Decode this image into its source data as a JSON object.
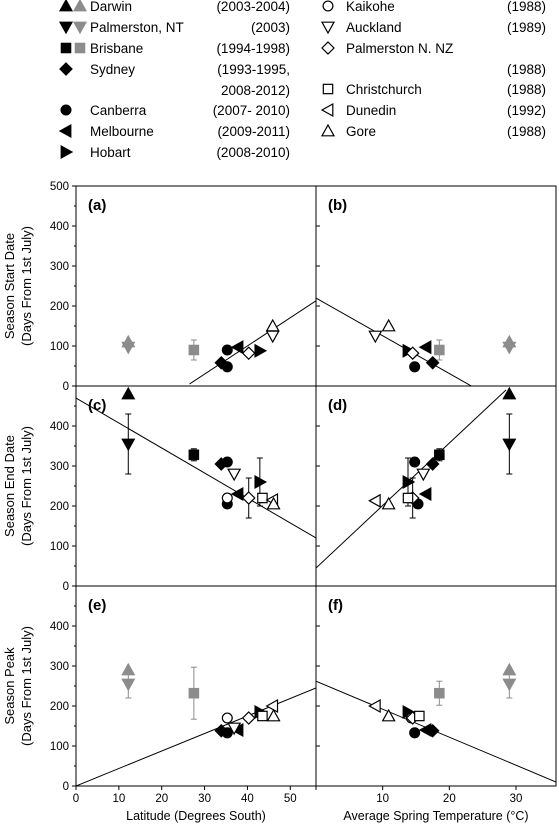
{
  "legend": {
    "left": [
      {
        "name": "Darwin",
        "years": "(2003-2004)",
        "markers": [
          "tri-up-black",
          "tri-up-grey"
        ]
      },
      {
        "name": "Palmerston, NT",
        "years": "(2003)",
        "markers": [
          "tri-down-black",
          "tri-down-grey"
        ]
      },
      {
        "name": "Brisbane",
        "years": "(1994-1998)",
        "markers": [
          "square-black",
          "square-grey"
        ]
      },
      {
        "name": "Sydney",
        "years": "(1993-1995,",
        "years2": "2008-2012)",
        "markers": [
          "diamond-black"
        ]
      },
      {
        "name": "Canberra",
        "years": "(2007- 2010)",
        "markers": [
          "circle-black"
        ]
      },
      {
        "name": "Melbourne",
        "years": "(2009-2011)",
        "markers": [
          "tri-left-black"
        ]
      },
      {
        "name": "Hobart",
        "years": "(2008-2010)",
        "markers": [
          "tri-right-black"
        ]
      }
    ],
    "right": [
      {
        "name": "Kaikohe",
        "years": "(1988)",
        "markers": [
          "circle-open"
        ]
      },
      {
        "name": "Auckland",
        "years": "(1989)",
        "markers": [
          "tri-down-open"
        ]
      },
      {
        "name": "Palmerston N. NZ",
        "years": "(1988)",
        "markers": [
          "diamond-open"
        ]
      },
      {
        "name": "Christchurch",
        "years": "(1988)",
        "markers": [
          "square-open"
        ]
      },
      {
        "name": "Dunedin",
        "years": "(1992)",
        "markers": [
          "tri-left-open"
        ]
      },
      {
        "name": "Gore",
        "years": "(1988)",
        "markers": [
          "tri-up-open"
        ]
      }
    ]
  },
  "axes": {
    "x_left_label": "Latitude (Degrees South)",
    "x_right_label": "Average Spring Temperature (°C)",
    "x_left_ticks": [
      "0",
      "10",
      "20",
      "30",
      "40",
      "50"
    ],
    "x_right_ticks": [
      "0",
      "10",
      "20",
      "30"
    ],
    "y_ticks": [
      "0",
      "100",
      "200",
      "300",
      "400",
      "500"
    ],
    "y_ticks_lower": [
      "0",
      "100",
      "200",
      "300",
      "400"
    ],
    "row_labels": [
      {
        "line1": "Season Start Date",
        "line2": "(Days From 1st July)"
      },
      {
        "line1": "Season End Date",
        "line2": "(Days From 1st July)"
      },
      {
        "line1": "Season Peak",
        "line2": "(Days From 1st July)"
      }
    ]
  },
  "chart_data": {
    "type": "scatter",
    "xlim_left": [
      0,
      56
    ],
    "xlim_right": [
      0,
      36
    ],
    "ylim": [
      0,
      500
    ],
    "panels": [
      {
        "id": "a",
        "label": "(a)",
        "row": 0,
        "col": 0,
        "fit": [
          [
            26.5,
            5
          ],
          [
            56,
            213
          ]
        ],
        "points": [
          {
            "m": "tri-up-grey",
            "x": 12.2,
            "y": 110
          },
          {
            "m": "tri-down-grey",
            "x": 12.2,
            "y": 97
          },
          {
            "m": "square-grey",
            "x": 27.5,
            "y": 90,
            "err": 25
          },
          {
            "m": "diamond-black",
            "x": 33.9,
            "y": 58
          },
          {
            "m": "circle-black",
            "x": 35.3,
            "y": 90
          },
          {
            "m": "circle-black",
            "x": 35.3,
            "y": 48
          },
          {
            "m": "tri-left-black",
            "x": 37.8,
            "y": 97
          },
          {
            "m": "tri-right-black",
            "x": 42.9,
            "y": 88
          },
          {
            "m": "diamond-open",
            "x": 40.3,
            "y": 82
          },
          {
            "m": "tri-up-open",
            "x": 45.9,
            "y": 150
          },
          {
            "m": "tri-down-open",
            "x": 45.9,
            "y": 125
          }
        ]
      },
      {
        "id": "b",
        "label": "(b)",
        "row": 0,
        "col": 1,
        "fit": [
          [
            0,
            220
          ],
          [
            23.3,
            0
          ]
        ],
        "points": [
          {
            "m": "tri-up-grey",
            "x": 29,
            "y": 110
          },
          {
            "m": "tri-down-grey",
            "x": 29,
            "y": 97
          },
          {
            "m": "square-grey",
            "x": 18.5,
            "y": 90,
            "err": 25
          },
          {
            "m": "diamond-black",
            "x": 17.5,
            "y": 58
          },
          {
            "m": "circle-black",
            "x": 14.8,
            "y": 48
          },
          {
            "m": "tri-left-black",
            "x": 16.5,
            "y": 97
          },
          {
            "m": "tri-right-black",
            "x": 13.8,
            "y": 88
          },
          {
            "m": "diamond-open",
            "x": 14.5,
            "y": 82
          },
          {
            "m": "tri-up-open",
            "x": 10.9,
            "y": 150
          },
          {
            "m": "tri-down-open",
            "x": 8.9,
            "y": 125
          }
        ]
      },
      {
        "id": "c",
        "label": "(c)",
        "row": 1,
        "col": 0,
        "fit": [
          [
            0,
            470
          ],
          [
            56,
            120
          ]
        ],
        "points": [
          {
            "m": "tri-up-black",
            "x": 12.2,
            "y": 480
          },
          {
            "m": "tri-down-black",
            "x": 12.2,
            "y": 355,
            "err": 75
          },
          {
            "m": "square-black",
            "x": 27.5,
            "y": 328,
            "err": 15
          },
          {
            "m": "diamond-black",
            "x": 33.9,
            "y": 305
          },
          {
            "m": "circle-black",
            "x": 35.3,
            "y": 310
          },
          {
            "m": "circle-black",
            "x": 35.3,
            "y": 205
          },
          {
            "m": "circle-open",
            "x": 35.3,
            "y": 220
          },
          {
            "m": "tri-down-open",
            "x": 36.9,
            "y": 280
          },
          {
            "m": "tri-left-black",
            "x": 37.8,
            "y": 230
          },
          {
            "m": "diamond-open",
            "x": 40.3,
            "y": 220,
            "err": 50
          },
          {
            "m": "tri-right-black",
            "x": 42.9,
            "y": 260,
            "err": 60
          },
          {
            "m": "square-open",
            "x": 43.5,
            "y": 220
          },
          {
            "m": "tri-left-open",
            "x": 45.9,
            "y": 215
          },
          {
            "m": "tri-up-open",
            "x": 46.1,
            "y": 205
          }
        ]
      },
      {
        "id": "d",
        "label": "(d)",
        "row": 1,
        "col": 1,
        "fit": [
          [
            0,
            45
          ],
          [
            28.5,
            490
          ]
        ],
        "points": [
          {
            "m": "tri-up-black",
            "x": 29,
            "y": 480
          },
          {
            "m": "tri-down-black",
            "x": 29,
            "y": 355,
            "err": 75
          },
          {
            "m": "square-black",
            "x": 18.5,
            "y": 328,
            "err": 15
          },
          {
            "m": "diamond-black",
            "x": 17.5,
            "y": 305
          },
          {
            "m": "circle-black",
            "x": 14.8,
            "y": 310
          },
          {
            "m": "circle-black",
            "x": 15.3,
            "y": 205
          },
          {
            "m": "circle-open",
            "x": 14.3,
            "y": 220
          },
          {
            "m": "tri-down-open",
            "x": 16.1,
            "y": 280
          },
          {
            "m": "tri-left-black",
            "x": 16.5,
            "y": 230
          },
          {
            "m": "diamond-open",
            "x": 14.5,
            "y": 220,
            "err": 50
          },
          {
            "m": "tri-right-black",
            "x": 13.8,
            "y": 260,
            "err": 60
          },
          {
            "m": "square-open",
            "x": 13.8,
            "y": 220
          },
          {
            "m": "tri-left-open",
            "x": 8.9,
            "y": 213
          },
          {
            "m": "tri-up-open",
            "x": 10.9,
            "y": 205
          }
        ]
      },
      {
        "id": "e",
        "label": "(e)",
        "row": 2,
        "col": 0,
        "fit": [
          [
            0,
            0
          ],
          [
            56,
            245
          ]
        ],
        "points": [
          {
            "m": "tri-up-grey",
            "x": 12.2,
            "y": 290
          },
          {
            "m": "tri-down-grey",
            "x": 12.2,
            "y": 255,
            "err": 35
          },
          {
            "m": "square-grey",
            "x": 27.5,
            "y": 232,
            "err": 65
          },
          {
            "m": "circle-open",
            "x": 35.3,
            "y": 170
          },
          {
            "m": "diamond-black",
            "x": 33.9,
            "y": 138
          },
          {
            "m": "circle-black",
            "x": 35.3,
            "y": 133
          },
          {
            "m": "tri-left-black",
            "x": 37.8,
            "y": 140
          },
          {
            "m": "tri-down-open",
            "x": 36.9,
            "y": 145
          },
          {
            "m": "diamond-open",
            "x": 40.3,
            "y": 170
          },
          {
            "m": "tri-right-black",
            "x": 42.9,
            "y": 185
          },
          {
            "m": "square-open",
            "x": 43.5,
            "y": 175
          },
          {
            "m": "tri-left-open",
            "x": 45.9,
            "y": 200
          },
          {
            "m": "tri-up-open",
            "x": 46.1,
            "y": 175
          }
        ]
      },
      {
        "id": "f",
        "label": "(f)",
        "row": 2,
        "col": 1,
        "fit": [
          [
            0,
            262
          ],
          [
            36,
            10
          ]
        ],
        "points": [
          {
            "m": "tri-up-grey",
            "x": 29,
            "y": 290
          },
          {
            "m": "tri-down-grey",
            "x": 29,
            "y": 255,
            "err": 35
          },
          {
            "m": "square-grey",
            "x": 18.5,
            "y": 232,
            "err": 30
          },
          {
            "m": "tri-left-open",
            "x": 8.9,
            "y": 200
          },
          {
            "m": "tri-up-open",
            "x": 10.9,
            "y": 175
          },
          {
            "m": "tri-right-black",
            "x": 13.8,
            "y": 185
          },
          {
            "m": "circle-open",
            "x": 14.3,
            "y": 170
          },
          {
            "m": "diamond-open",
            "x": 14.5,
            "y": 170
          },
          {
            "m": "square-open",
            "x": 15.5,
            "y": 175
          },
          {
            "m": "circle-black",
            "x": 14.8,
            "y": 133
          },
          {
            "m": "tri-left-black",
            "x": 16.5,
            "y": 140
          },
          {
            "m": "diamond-black",
            "x": 17.5,
            "y": 138
          }
        ]
      }
    ]
  },
  "colors": {
    "black": "#000000",
    "grey": "#8c8c8c",
    "axis": "#000000"
  }
}
